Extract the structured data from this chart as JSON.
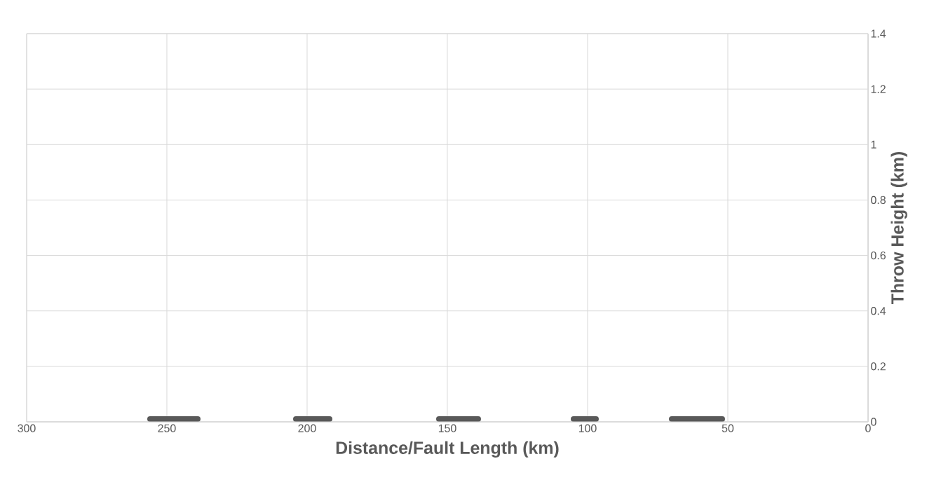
{
  "chart_data": {
    "type": "line",
    "xlabel": "Distance/Fault Length (km)",
    "ylabel": "Throw Height (km)",
    "xlim": [
      300,
      0
    ],
    "xticks": [
      300,
      250,
      200,
      150,
      100,
      50,
      0
    ],
    "ylim": [
      0,
      1.4
    ],
    "yticks": [
      0,
      0.2,
      0.4,
      0.6,
      0.8,
      1,
      1.2,
      1.4
    ],
    "grid": true,
    "series": [
      {
        "color": "#595959",
        "x": [
          256,
          239
        ],
        "values": [
          0.01,
          0.01
        ]
      },
      {
        "color": "#595959",
        "x": [
          204,
          192
        ],
        "values": [
          0.01,
          0.01
        ]
      },
      {
        "color": "#595959",
        "x": [
          153,
          139
        ],
        "values": [
          0.01,
          0.01
        ]
      },
      {
        "color": "#595959",
        "x": [
          105,
          97
        ],
        "values": [
          0.01,
          0.01
        ]
      },
      {
        "color": "#595959",
        "x": [
          70,
          52
        ],
        "values": [
          0.01,
          0.01
        ]
      }
    ]
  }
}
